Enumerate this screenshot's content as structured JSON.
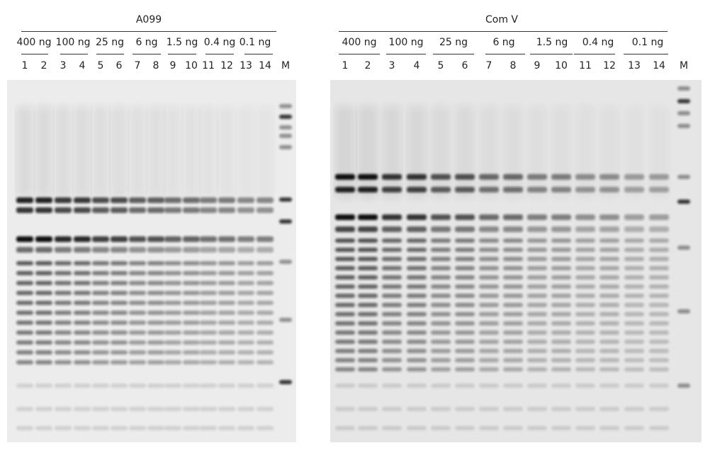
{
  "panels": [
    {
      "title": "A099",
      "groups": [
        "400 ng",
        "100 ng",
        "25 ng",
        "6 ng",
        "1.5 ng",
        "0.4 ng",
        "0.1 ng"
      ],
      "lanes": [
        "1",
        "2",
        "3",
        "4",
        "5",
        "6",
        "7",
        "8",
        "9",
        "10",
        "11",
        "12",
        "13",
        "14",
        "M"
      ]
    },
    {
      "title": "Com V",
      "groups": [
        "400 ng",
        "100 ng",
        "25 ng",
        "6 ng",
        "1.5 ng",
        "0.4 ng",
        "0.1 ng"
      ],
      "lanes": [
        "1",
        "2",
        "3",
        "4",
        "5",
        "6",
        "7",
        "8",
        "9",
        "10",
        "11",
        "12",
        "13",
        "14",
        "M"
      ]
    }
  ]
}
